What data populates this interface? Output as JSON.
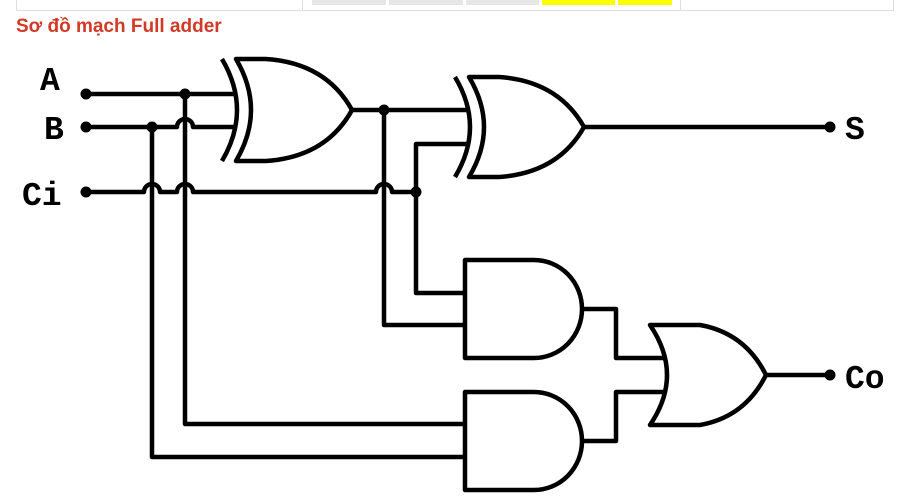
{
  "title": "Sơ đồ mạch Full adder",
  "colors": {
    "title": "#d13a26",
    "wire": "#000000",
    "cell_gray": "#e6e6e6",
    "cell_yellow": "#ffff00"
  },
  "diagram": {
    "type": "logic-circuit",
    "inputs": [
      "A",
      "B",
      "Ci"
    ],
    "outputs": [
      "S",
      "Co"
    ],
    "gates": [
      {
        "id": "xor1",
        "type": "XOR",
        "in": [
          "A",
          "B"
        ]
      },
      {
        "id": "xor2",
        "type": "XOR",
        "in": [
          "xor1",
          "Ci"
        ],
        "out": "S"
      },
      {
        "id": "and1",
        "type": "AND",
        "in": [
          "Ci",
          "xor1"
        ]
      },
      {
        "id": "and2",
        "type": "AND",
        "in": [
          "B",
          "A"
        ]
      },
      {
        "id": "or1",
        "type": "OR",
        "in": [
          "and1",
          "and2"
        ],
        "out": "Co"
      }
    ]
  }
}
